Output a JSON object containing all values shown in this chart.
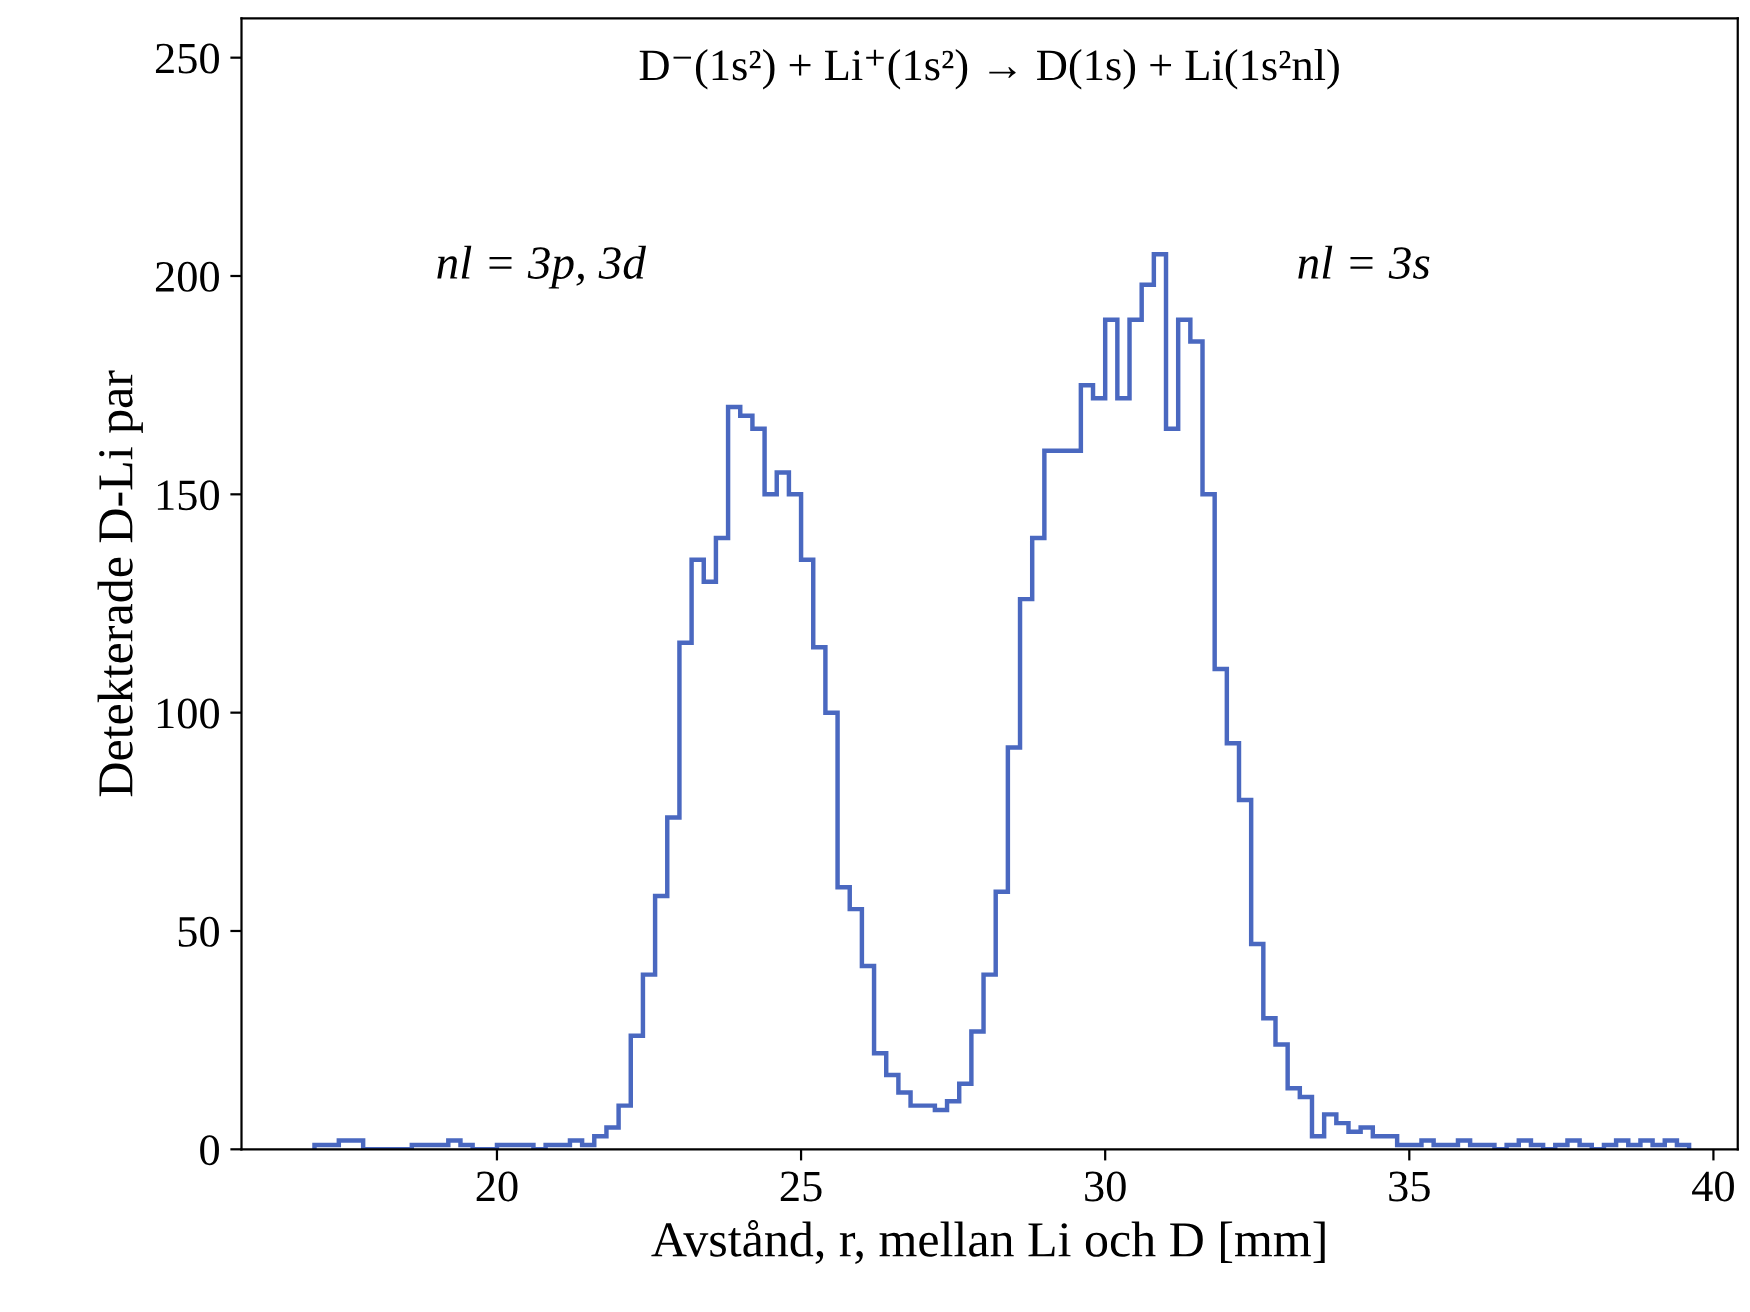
{
  "chart_data": {
    "type": "histogram",
    "title": "D⁻(1s²) + Li⁺(1s²) → D(1s) + Li(1s²nl)",
    "xlabel": "Avstånd, r, mellan Li och D [mm]",
    "ylabel": "Detekterade D-Li par",
    "annotations": [
      "nl = 3p, 3d",
      "nl = 3s"
    ],
    "bins": [
      17.0,
      17.2,
      17.4,
      17.6,
      17.8,
      18.0,
      18.2,
      18.4,
      18.6,
      18.8,
      19.0,
      19.2,
      19.4,
      19.6,
      19.8,
      20.0,
      20.2,
      20.4,
      20.6,
      20.8,
      21.0,
      21.2,
      21.4,
      21.6,
      21.8,
      22.0,
      22.2,
      22.4,
      22.6,
      22.8,
      23.0,
      23.2,
      23.4,
      23.6,
      23.8,
      24.0,
      24.2,
      24.4,
      24.6,
      24.8,
      25.0,
      25.2,
      25.4,
      25.6,
      25.8,
      26.0,
      26.2,
      26.4,
      26.6,
      26.8,
      27.0,
      27.2,
      27.4,
      27.6,
      27.8,
      28.0,
      28.2,
      28.4,
      28.6,
      28.8,
      29.0,
      29.2,
      29.4,
      29.6,
      29.8,
      30.0,
      30.2,
      30.4,
      30.6,
      30.8,
      31.0,
      31.2,
      31.4,
      31.6,
      31.8,
      32.0,
      32.2,
      32.4,
      32.6,
      32.8,
      33.0,
      33.2,
      33.4,
      33.6,
      33.8,
      34.0,
      34.2,
      34.4,
      34.6,
      34.8,
      35.0,
      35.2,
      35.4,
      35.6,
      35.8,
      36.0,
      36.2,
      36.4,
      36.6,
      36.8,
      37.0,
      37.2,
      37.4,
      37.6,
      37.8,
      38.0,
      38.2,
      38.4,
      38.6,
      38.8,
      39.0,
      39.2,
      39.4,
      39.6
    ],
    "values": [
      1,
      1,
      2,
      2,
      0,
      0,
      0,
      0,
      1,
      1,
      1,
      2,
      1,
      0,
      0,
      1,
      1,
      1,
      0,
      1,
      1,
      2,
      1,
      3,
      5,
      10,
      26,
      40,
      58,
      76,
      116,
      135,
      130,
      140,
      170,
      168,
      165,
      150,
      155,
      150,
      135,
      115,
      100,
      60,
      55,
      42,
      22,
      17,
      13,
      10,
      10,
      9,
      11,
      15,
      27,
      40,
      59,
      92,
      126,
      140,
      160,
      160,
      160,
      175,
      172,
      190,
      172,
      190,
      198,
      205,
      165,
      190,
      185,
      150,
      110,
      93,
      80,
      47,
      30,
      24,
      14,
      12,
      3,
      8,
      6,
      4,
      5,
      3,
      3,
      1,
      1,
      2,
      1,
      1,
      2,
      1,
      1,
      0,
      1,
      2,
      1,
      0,
      1,
      2,
      1,
      0,
      1,
      2,
      1,
      2,
      1,
      2,
      1
    ],
    "color": "#4a68c0",
    "xlim": [
      15.8,
      40.4
    ],
    "ylim": [
      0,
      259
    ],
    "xticks": [
      20,
      25,
      30,
      35,
      40
    ],
    "yticks": [
      0,
      50,
      100,
      150,
      200,
      250
    ],
    "grid": false
  }
}
